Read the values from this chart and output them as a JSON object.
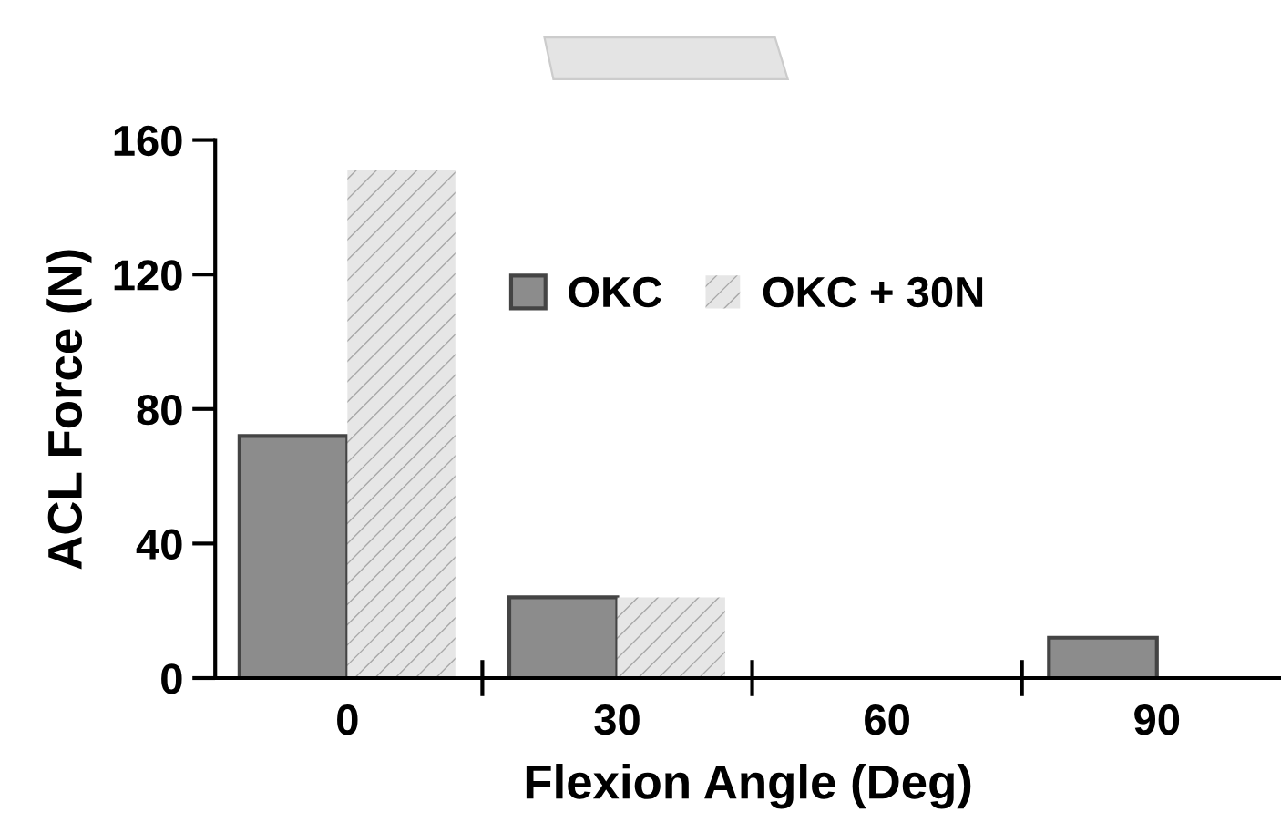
{
  "chart_data": {
    "type": "bar",
    "xlabel": "Flexion Angle (Deg)",
    "ylabel": "ACL Force (N)",
    "categories": [
      "0",
      "30",
      "60",
      "90"
    ],
    "series": [
      {
        "name": "OKC",
        "color": "#8c8c8c",
        "values": [
          72,
          24,
          null,
          12
        ]
      },
      {
        "name": "OKC + 30N",
        "color": "#e6e6e6",
        "values": [
          151,
          24,
          null,
          null
        ]
      }
    ],
    "ylim": [
      0,
      160
    ],
    "yticks": [
      0,
      40,
      80,
      120,
      160
    ],
    "grid": false,
    "legend": "top"
  }
}
